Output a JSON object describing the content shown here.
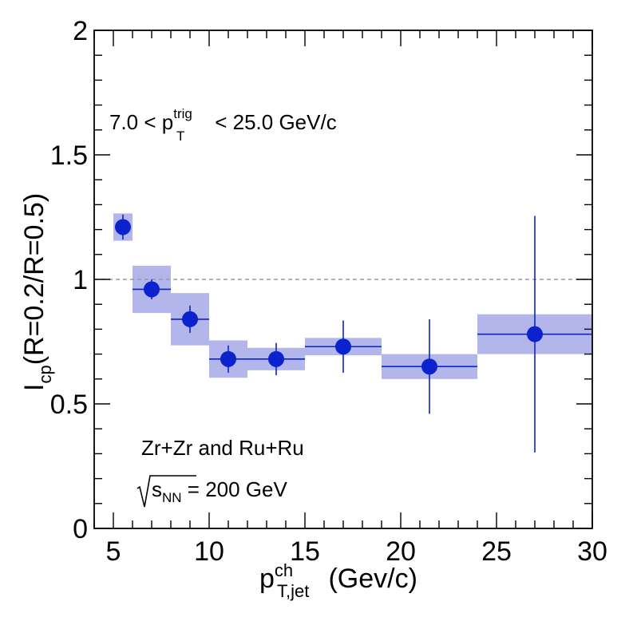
{
  "chart_data": {
    "type": "scatter",
    "xlim": [
      4,
      30
    ],
    "ylim": [
      0,
      2
    ],
    "x_ticks": [
      "5",
      "10",
      "15",
      "20",
      "25",
      "30"
    ],
    "y_ticks": [
      "0",
      "0.5",
      "1",
      "1.5",
      "2"
    ],
    "xlabel": {
      "main": "p",
      "sup": "ch",
      "sub": "T,jet",
      "unit": " (Gev/c)"
    },
    "ylabel": {
      "main": "I",
      "sub": "cp",
      "rest": "(R=0.2/R=0.5)"
    },
    "reference_line": 1.0,
    "annotations": {
      "trigger": {
        "pre": "7.0 < p",
        "sup": "trig",
        "sub": "T",
        "post": " < 25.0 GeV/c"
      },
      "system": "Zr+Zr and Ru+Ru",
      "energy": {
        "sub": "NN",
        "post": " = 200 GeV"
      }
    },
    "colors": {
      "marker": "#0b22cc",
      "syst_box": "#b3b6ea",
      "ref_line": "#9a9a9a"
    },
    "points": [
      {
        "x": 5.5,
        "y": 1.21,
        "x_low": 5.5,
        "x_high": 5.5,
        "y_err": 0.05,
        "sys_x_low": 5.0,
        "sys_x_high": 6.0,
        "sys_y": 0.055
      },
      {
        "x": 7.0,
        "y": 0.96,
        "x_low": 6.0,
        "x_high": 8.0,
        "y_err": 0.04,
        "sys_x_low": 6.0,
        "sys_x_high": 8.0,
        "sys_y": 0.095
      },
      {
        "x": 9.0,
        "y": 0.84,
        "x_low": 8.0,
        "x_high": 10.0,
        "y_err": 0.055,
        "sys_x_low": 8.0,
        "sys_x_high": 10.0,
        "sys_y": 0.105
      },
      {
        "x": 11.0,
        "y": 0.68,
        "x_low": 10.0,
        "x_high": 12.0,
        "y_err": 0.055,
        "sys_x_low": 10.0,
        "sys_x_high": 12.0,
        "sys_y": 0.075
      },
      {
        "x": 13.5,
        "y": 0.68,
        "x_low": 12.0,
        "x_high": 15.0,
        "y_err": 0.065,
        "sys_x_low": 12.0,
        "sys_x_high": 15.0,
        "sys_y": 0.045
      },
      {
        "x": 17.0,
        "y": 0.73,
        "x_low": 15.0,
        "x_high": 19.0,
        "y_err": 0.105,
        "sys_x_low": 15.0,
        "sys_x_high": 19.0,
        "sys_y": 0.035
      },
      {
        "x": 21.5,
        "y": 0.65,
        "x_low": 19.0,
        "x_high": 24.0,
        "y_err": 0.19,
        "sys_x_low": 19.0,
        "sys_x_high": 24.0,
        "sys_y": 0.05
      },
      {
        "x": 27.0,
        "y": 0.78,
        "x_low": 24.0,
        "x_high": 30.0,
        "y_err": 0.475,
        "sys_x_low": 24.0,
        "sys_x_high": 30.0,
        "sys_y": 0.08
      }
    ]
  }
}
